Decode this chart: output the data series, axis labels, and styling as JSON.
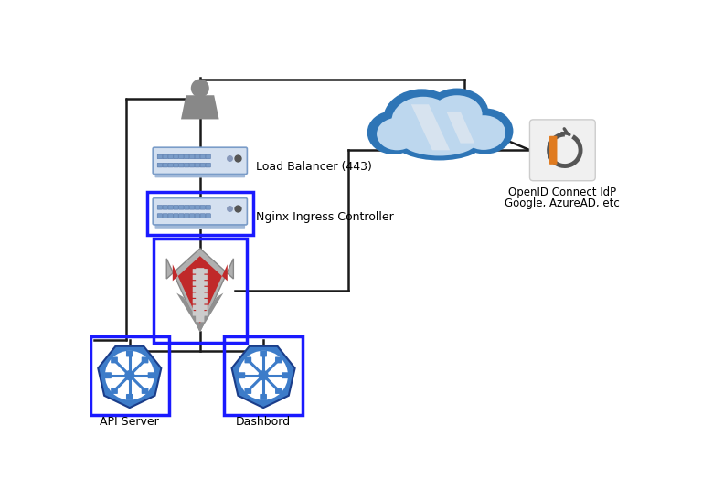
{
  "bg_color": "#ffffff",
  "load_balancer_label": "Load Balancer (443)",
  "nginx_label": "Nginx Ingress Controller",
  "api_label": "API Server",
  "dashboard_label": "Dashbord",
  "oidc_label1": "OpenID Connect IdP",
  "oidc_label2": "Google, AzureAD, etc",
  "box_blue": "#1a1aff",
  "cloud_blue": "#2e75b6",
  "cloud_light": "#bdd7ee",
  "cloud_lighter": "#dce6f0",
  "kube_blue": "#3d7cc9",
  "kube_dark": "#2255bb",
  "shield_red": "#c0292a",
  "shield_dark_red": "#8b0000",
  "shield_gray": "#8a8a8a",
  "oidc_orange": "#e07b20",
  "oidc_gray": "#555555",
  "line_color": "#1a1a1a",
  "switch_face": "#d4e0f0",
  "switch_port": "#7a9cc8",
  "switch_edge": "#7a9cc8",
  "switch_bar_color": "#a0b8d8"
}
